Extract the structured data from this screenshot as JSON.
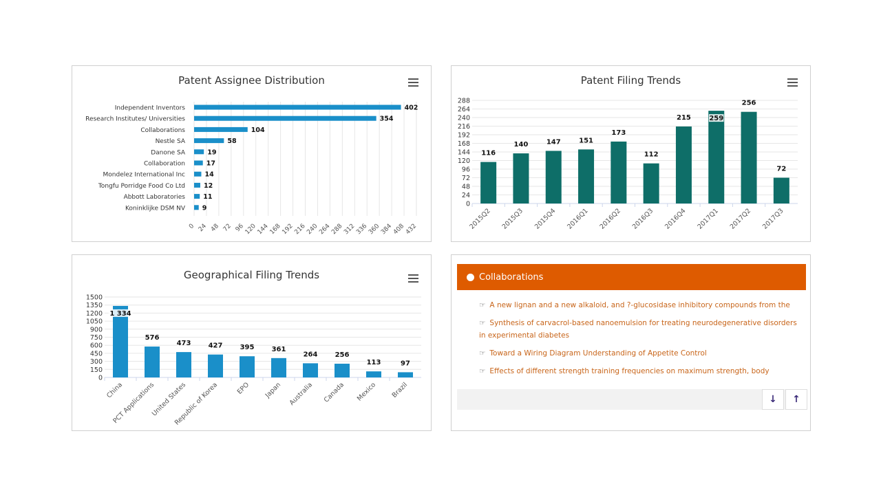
{
  "panel1": {
    "title": "Patent Assignee Distribution",
    "chart_data": {
      "type": "bar",
      "orientation": "horizontal",
      "title": "Patent Assignee Distribution",
      "categories": [
        "Independent Inventors",
        "Research Institutes/ Universities",
        "Collaborations",
        "Nestle SA",
        "Danone SA",
        "Collaboration",
        "Mondelez International Inc",
        "Tongfu Porridge Food Co Ltd",
        "Abbott Laboratories",
        "Koninklijke DSM NV"
      ],
      "values": [
        402,
        354,
        104,
        58,
        19,
        17,
        14,
        12,
        11,
        9
      ],
      "ticks": [
        0,
        24,
        48,
        72,
        96,
        120,
        144,
        168,
        192,
        216,
        240,
        264,
        288,
        312,
        336,
        360,
        384,
        408,
        432
      ],
      "xlim": [
        0,
        432
      ],
      "color": "#1a8fc9",
      "grid": true
    }
  },
  "panel2": {
    "title": "Patent Filing Trends",
    "chart_data": {
      "type": "bar",
      "title": "Patent Filing Trends",
      "categories": [
        "2015Q2",
        "2015Q3",
        "2015Q4",
        "2016Q1",
        "2016Q2",
        "2016Q3",
        "2016Q4",
        "2017Q1",
        "2017Q2",
        "2017Q3"
      ],
      "values": [
        116,
        140,
        147,
        151,
        173,
        112,
        215,
        259,
        256,
        72
      ],
      "ticks": [
        0,
        24,
        48,
        72,
        96,
        120,
        144,
        168,
        192,
        216,
        240,
        264,
        288
      ],
      "ylim": [
        0,
        288
      ],
      "color": "#0e6e68",
      "grid": true
    }
  },
  "panel3": {
    "title": "Geographical Filing Trends",
    "chart_data": {
      "type": "bar",
      "title": "Geographical Filing Trends",
      "categories": [
        "China",
        "PCT Applications",
        "United States",
        "Republic of Korea",
        "EPO",
        "Japan",
        "Australia",
        "Canada",
        "Mexico",
        "Brazil"
      ],
      "values": [
        1334,
        576,
        473,
        427,
        395,
        361,
        264,
        256,
        113,
        97
      ],
      "labels": [
        "1 334",
        "576",
        "473",
        "427",
        "395",
        "361",
        "264",
        "256",
        "113",
        "97"
      ],
      "ticks": [
        0,
        150,
        300,
        450,
        600,
        750,
        900,
        1050,
        1200,
        1350,
        1500
      ],
      "ylim": [
        0,
        1500
      ],
      "color": "#1a8fc9",
      "grid": true
    }
  },
  "panel4": {
    "header": "Collaborations",
    "items": [
      "A new lignan and a new alkaloid, and ?-glucosidase inhibitory compounds from the",
      "Synthesis of carvacrol-based nanoemulsion for treating neurodegenerative disorders in experimental diabetes",
      "Toward a Wiring Diagram Understanding of Appetite Control",
      "Effects of different strength training frequencies on maximum strength, body"
    ],
    "down_icon": "arrow-down-icon",
    "up_icon": "arrow-up-icon",
    "header_color": "#de5b00"
  }
}
